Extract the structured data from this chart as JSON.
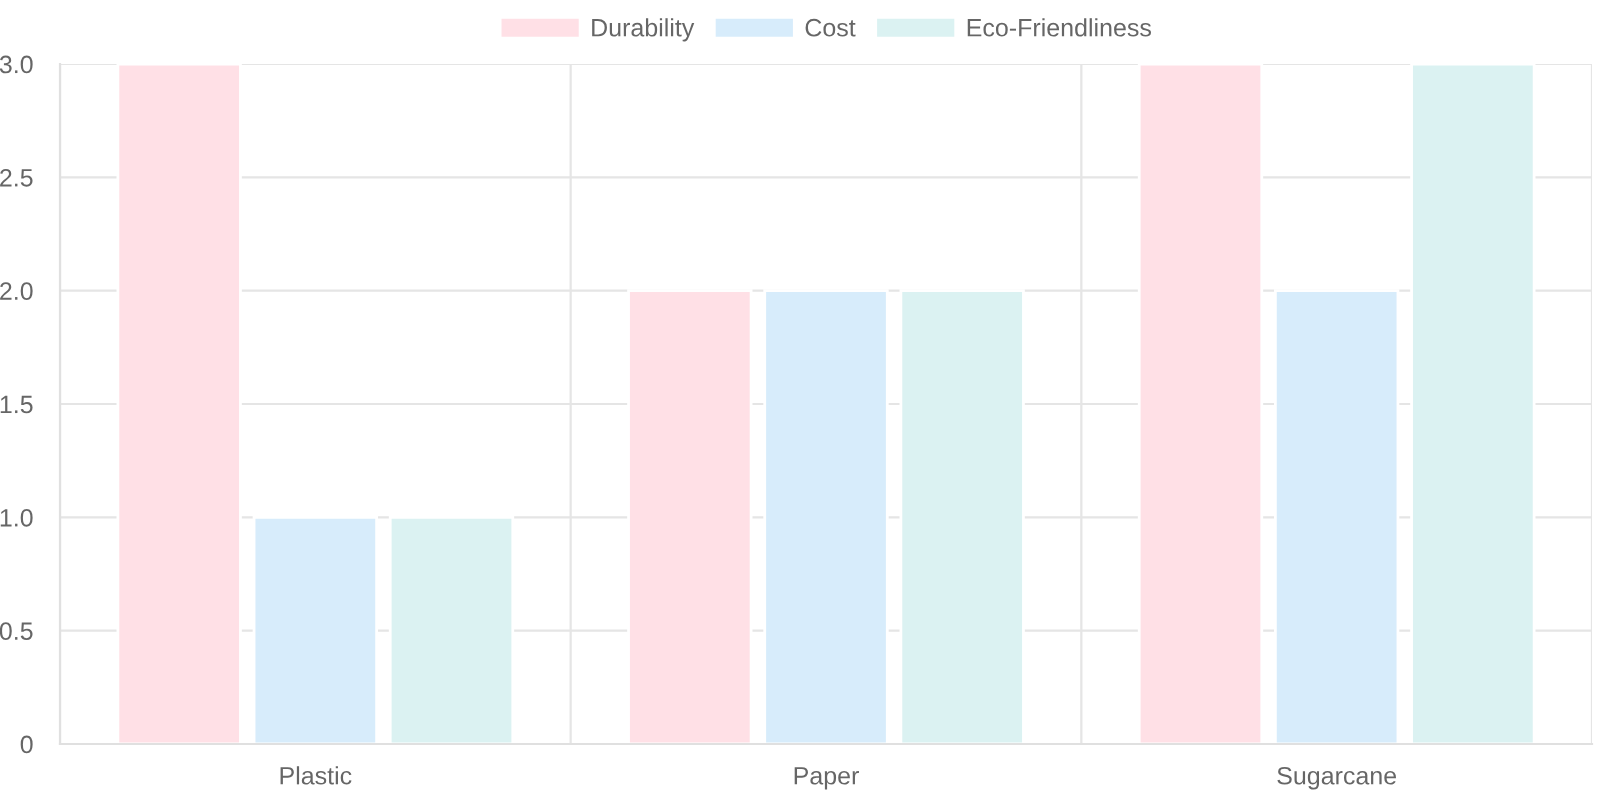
{
  "chart_data": {
    "type": "bar",
    "categories": [
      "Plastic",
      "Paper",
      "Sugarcane"
    ],
    "series": [
      {
        "name": "Durability",
        "color": "#ffe0e6",
        "values": [
          3,
          2,
          3
        ]
      },
      {
        "name": "Cost",
        "color": "#d7ecfb",
        "values": [
          1,
          2,
          2
        ]
      },
      {
        "name": "Eco-Friendliness",
        "color": "#dbf2f2",
        "values": [
          1,
          2,
          3
        ]
      }
    ],
    "ylim": [
      0,
      3
    ],
    "yticks": [
      {
        "value": 0,
        "label": "0"
      },
      {
        "value": 0.5,
        "label": "0.5"
      },
      {
        "value": 1,
        "label": "1.0"
      },
      {
        "value": 1.5,
        "label": "1.5"
      },
      {
        "value": 2,
        "label": "2.0"
      },
      {
        "value": 2.5,
        "label": "2.5"
      },
      {
        "value": 3,
        "label": "3.0"
      }
    ],
    "grid": true,
    "legend": "top"
  }
}
